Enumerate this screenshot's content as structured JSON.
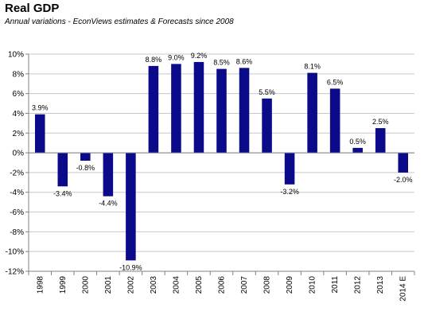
{
  "chart_data": {
    "type": "bar",
    "title": "Real GDP",
    "subtitle": "Annual variations - EconViews estimates & Forecasts since 2008",
    "xlabel": "",
    "ylabel": "",
    "categories": [
      "1998",
      "1999",
      "2000",
      "2001",
      "2002",
      "2003",
      "2004",
      "2005",
      "2006",
      "2007",
      "2008",
      "2009",
      "2010",
      "2011",
      "2012",
      "2013",
      "2014 E"
    ],
    "values": [
      3.9,
      -3.4,
      -0.8,
      -4.4,
      -10.9,
      8.8,
      9.0,
      9.2,
      8.5,
      8.6,
      5.5,
      -3.2,
      8.1,
      6.5,
      0.5,
      2.5,
      -2.0
    ],
    "value_labels": [
      "3.9%",
      "-3.4%",
      "-0.8%",
      "-4.4%",
      "-10.9%",
      "8.8%",
      "9.0%",
      "9.2%",
      "8.5%",
      "8.6%",
      "5.5%",
      "-3.2%",
      "8.1%",
      "6.5%",
      "0.5%",
      "2.5%",
      "-2.0%"
    ],
    "ylim": [
      -12,
      10
    ],
    "yticks": [
      10,
      8,
      6,
      4,
      2,
      0,
      -2,
      -4,
      -6,
      -8,
      -10,
      -12
    ],
    "ytick_labels": [
      "10%",
      "8%",
      "6%",
      "4%",
      "2%",
      "0%",
      "-2%",
      "-4%",
      "-6%",
      "-8%",
      "-10%",
      "-12%"
    ],
    "grid": true,
    "legend": "none",
    "bar_color": "#0a0a8a"
  }
}
